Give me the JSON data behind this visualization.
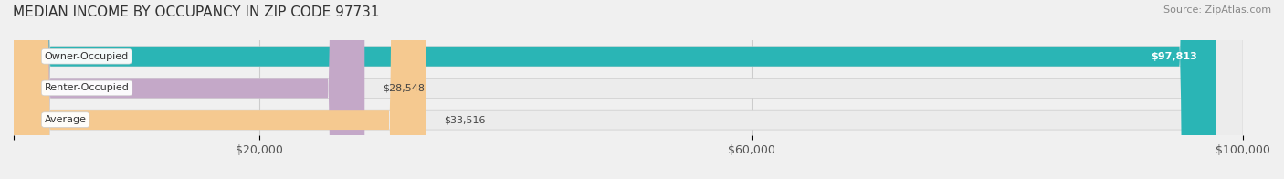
{
  "title": "MEDIAN INCOME BY OCCUPANCY IN ZIP CODE 97731",
  "source": "Source: ZipAtlas.com",
  "categories": [
    "Owner-Occupied",
    "Renter-Occupied",
    "Average"
  ],
  "values": [
    97813,
    28548,
    33516
  ],
  "labels": [
    "$97,813",
    "$28,548",
    "$33,516"
  ],
  "bar_colors": [
    "#2ab5b5",
    "#c4a8c8",
    "#f5c990"
  ],
  "bar_edge_colors": [
    "#2ab5b5",
    "#c4a8c8",
    "#f5c990"
  ],
  "label_bg_color": [
    "#2ab5b5",
    "#c4a8c8",
    "#f5c990"
  ],
  "xlim": [
    0,
    100000
  ],
  "xticks": [
    0,
    20000,
    60000,
    100000
  ],
  "xticklabels": [
    "",
    "$20,000",
    "$60,000",
    "$100,000"
  ],
  "background_color": "#f0f0f0",
  "bar_bg_color": "#e8e8e8",
  "title_fontsize": 11,
  "source_fontsize": 8,
  "tick_fontsize": 9,
  "bar_label_fontsize": 8,
  "category_fontsize": 8
}
